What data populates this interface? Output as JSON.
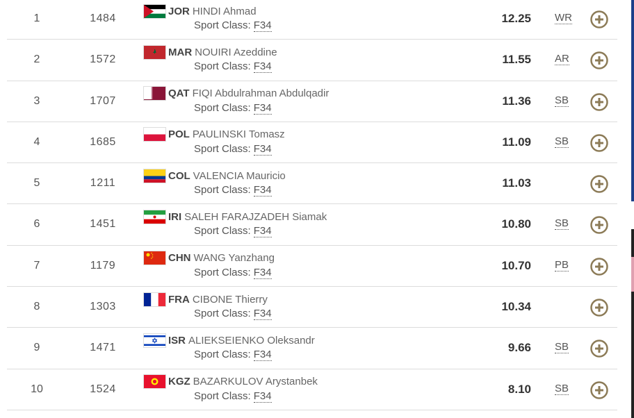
{
  "sport_class_label": "Sport Class:",
  "rows": [
    {
      "rank": 1,
      "bib": 1484,
      "noc": "JOR",
      "name": "HINDI Ahmad",
      "sport_class": "F34",
      "result": "12.25",
      "record": "WR"
    },
    {
      "rank": 2,
      "bib": 1572,
      "noc": "MAR",
      "name": "NOUIRI Azeddine",
      "sport_class": "F34",
      "result": "11.55",
      "record": "AR"
    },
    {
      "rank": 3,
      "bib": 1707,
      "noc": "QAT",
      "name": "FIQI Abdulrahman Abdulqadir",
      "sport_class": "F34",
      "result": "11.36",
      "record": "SB"
    },
    {
      "rank": 4,
      "bib": 1685,
      "noc": "POL",
      "name": "PAULINSKI Tomasz",
      "sport_class": "F34",
      "result": "11.09",
      "record": "SB"
    },
    {
      "rank": 5,
      "bib": 1211,
      "noc": "COL",
      "name": "VALENCIA Mauricio",
      "sport_class": "F34",
      "result": "11.03"
    },
    {
      "rank": 6,
      "bib": 1451,
      "noc": "IRI",
      "name": "SALEH FARAJZADEH Siamak",
      "sport_class": "F34",
      "result": "10.80",
      "record": "SB"
    },
    {
      "rank": 7,
      "bib": 1179,
      "noc": "CHN",
      "name": "WANG Yanzhang",
      "sport_class": "F34",
      "result": "10.70",
      "record": "PB"
    },
    {
      "rank": 8,
      "bib": 1303,
      "noc": "FRA",
      "name": "CIBONE Thierry",
      "sport_class": "F34",
      "result": "10.34"
    },
    {
      "rank": 9,
      "bib": 1471,
      "noc": "ISR",
      "name": "ALIEKSEIENKO Oleksandr",
      "sport_class": "F34",
      "result": "9.66",
      "record": "SB"
    },
    {
      "rank": 10,
      "bib": 1524,
      "noc": "KGZ",
      "name": "BAZARKULOV Arystanbek",
      "sport_class": "F34",
      "result": "8.10",
      "record": "SB"
    }
  ]
}
